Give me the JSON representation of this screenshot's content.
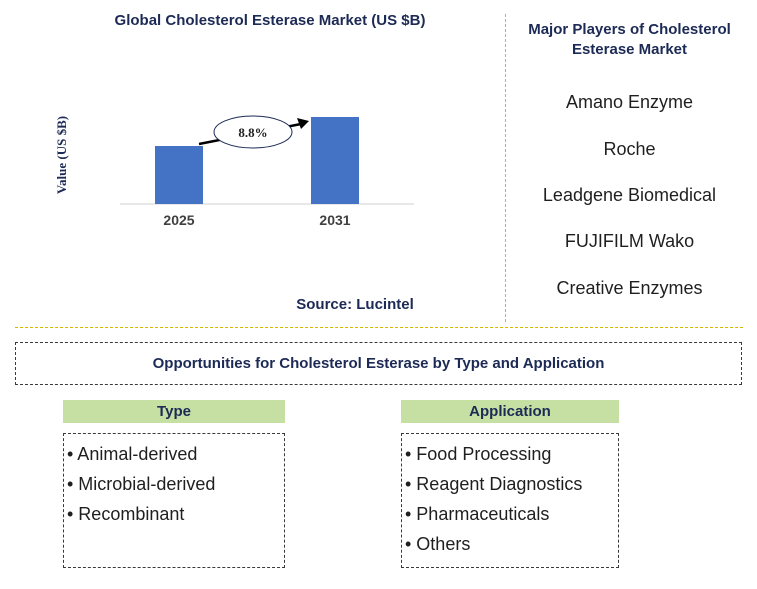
{
  "chart_data": {
    "type": "bar",
    "title": "Global Cholesterol Esterase Market (US $B)",
    "ylabel": "Value (US $B)",
    "xlabel": "",
    "categories": [
      "2025",
      "2031"
    ],
    "values": [
      0.58,
      0.87
    ],
    "ylim": [
      0,
      1
    ],
    "annotation": "8.8%",
    "grid": false,
    "colors": {
      "bar": "#4472c4"
    }
  },
  "source": "Source: Lucintel",
  "players": {
    "title": "Major Players of Cholesterol Esterase Market",
    "items": [
      "Amano Enzyme",
      "Roche",
      "Leadgene Biomedical",
      "FUJIFILM Wako",
      "Creative Enzymes"
    ]
  },
  "opportunities": {
    "title": "Opportunities for Cholesterol Esterase by Type and Application",
    "type": {
      "header": "Type",
      "items": [
        "• Animal-derived",
        "• Microbial-derived",
        "• Recombinant"
      ]
    },
    "application": {
      "header": "Application",
      "items": [
        "• Food Processing",
        "• Reagent Diagnostics",
        "• Pharmaceuticals",
        "• Others"
      ]
    }
  },
  "colors": {
    "header_fill": "#c6e0a4",
    "title_text": "#1c2a55",
    "divider": "#d9b800"
  }
}
